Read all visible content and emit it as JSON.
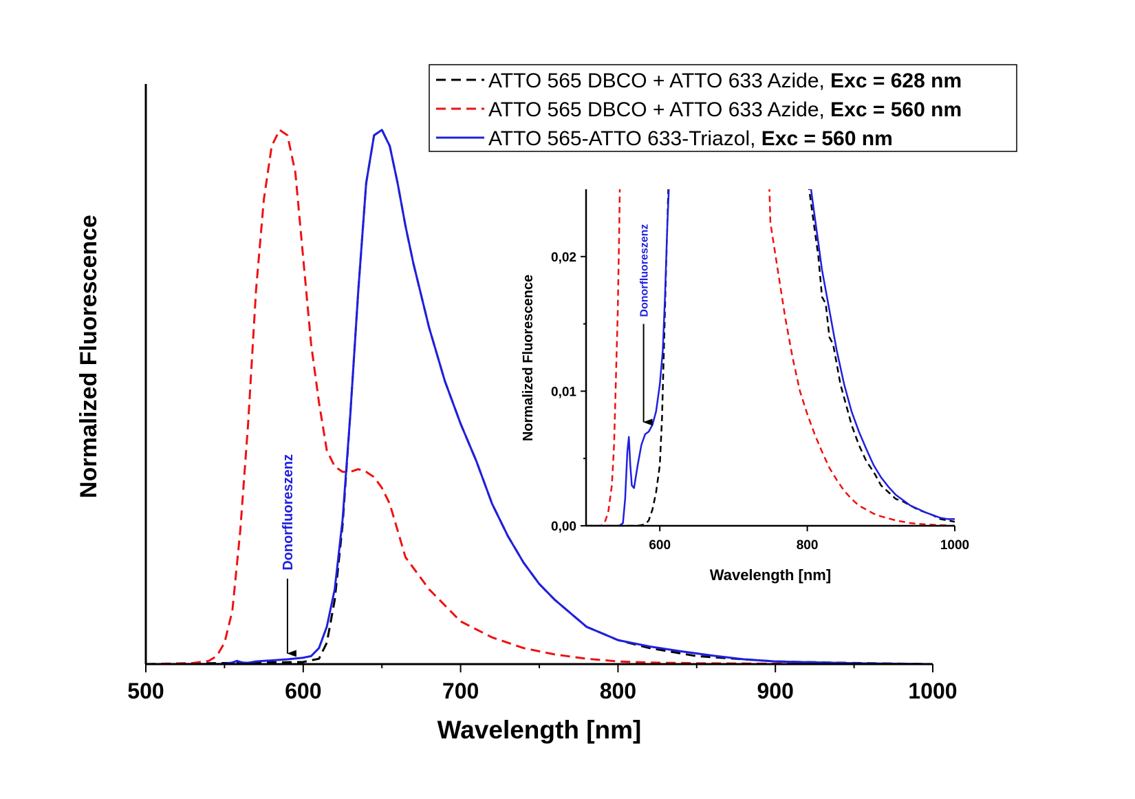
{
  "chart_data": [
    {
      "type": "line",
      "xlabel": "Wavelength [nm]",
      "ylabel": "Normalized Fluorescence",
      "xlim": [
        500,
        1000
      ],
      "ylim": [
        0,
        1.05
      ],
      "x_ticks": [
        500,
        600,
        700,
        800,
        900,
        1000
      ],
      "y_ticks_shown": false,
      "legend_position": "top-right",
      "annotation": {
        "text": "Donorfluoreszenz",
        "x": 590,
        "y_tip": 0.02,
        "y_tail": 0.16,
        "color": "#1f1fe0"
      },
      "series": [
        {
          "name": "ATTO 565 DBCO + ATTO 633 Azide, ",
          "name_bold": "Exc = 628 nm",
          "color": "#000000",
          "dash": "dashed",
          "x": [
            500,
            600,
            610,
            615,
            620,
            625,
            630,
            635,
            640,
            645,
            650,
            655,
            660,
            665,
            670,
            680,
            690,
            700,
            710,
            720,
            730,
            740,
            750,
            760,
            780,
            800,
            820,
            850,
            900,
            950,
            1000
          ],
          "y": [
            0,
            0.004,
            0.01,
            0.04,
            0.12,
            0.26,
            0.47,
            0.7,
            0.9,
            0.99,
            1.0,
            0.97,
            0.9,
            0.82,
            0.75,
            0.63,
            0.53,
            0.45,
            0.38,
            0.3,
            0.24,
            0.19,
            0.15,
            0.12,
            0.07,
            0.045,
            0.03,
            0.015,
            0.005,
            0.002,
            0.0
          ]
        },
        {
          "name": "ATTO 565 DBCO + ATTO 633 Azide, ",
          "name_bold": "Exc = 560 nm",
          "color": "#ee1111",
          "dash": "dashed",
          "x": [
            500,
            530,
            540,
            545,
            550,
            555,
            560,
            565,
            570,
            575,
            580,
            585,
            590,
            595,
            600,
            605,
            610,
            615,
            620,
            625,
            630,
            635,
            640,
            645,
            650,
            655,
            660,
            665,
            670,
            680,
            690,
            700,
            720,
            740,
            760,
            780,
            800,
            820,
            850,
            900,
            950,
            1000
          ],
          "y": [
            0,
            0.002,
            0.006,
            0.015,
            0.04,
            0.1,
            0.25,
            0.45,
            0.7,
            0.87,
            0.97,
            1.0,
            0.99,
            0.92,
            0.76,
            0.6,
            0.49,
            0.4,
            0.37,
            0.36,
            0.36,
            0.365,
            0.36,
            0.35,
            0.33,
            0.3,
            0.25,
            0.2,
            0.18,
            0.14,
            0.11,
            0.08,
            0.05,
            0.03,
            0.018,
            0.01,
            0.005,
            0.003,
            0.0015,
            0.0008,
            0.0003,
            0.0
          ]
        },
        {
          "name": "ATTO 565-ATTO 633-Triazol, ",
          "name_bold": "Exc = 560 nm",
          "color": "#1f1fe0",
          "dash": "solid",
          "x": [
            500,
            550,
            555,
            558,
            560,
            563,
            566,
            570,
            575,
            580,
            590,
            600,
            605,
            610,
            615,
            620,
            625,
            630,
            635,
            640,
            645,
            650,
            655,
            660,
            665,
            670,
            680,
            690,
            700,
            710,
            720,
            730,
            740,
            750,
            760,
            780,
            800,
            820,
            840,
            860,
            880,
            900,
            950,
            1000
          ],
          "y": [
            0,
            0.0005,
            0.003,
            0.006,
            0.004,
            0.002,
            0.003,
            0.005,
            0.006,
            0.007,
            0.009,
            0.012,
            0.015,
            0.03,
            0.07,
            0.14,
            0.27,
            0.47,
            0.7,
            0.9,
            0.99,
            1.0,
            0.97,
            0.9,
            0.82,
            0.75,
            0.63,
            0.53,
            0.45,
            0.38,
            0.3,
            0.24,
            0.19,
            0.15,
            0.12,
            0.07,
            0.045,
            0.033,
            0.024,
            0.016,
            0.009,
            0.005,
            0.0015,
            0.0
          ]
        }
      ]
    },
    {
      "type": "line",
      "inset": true,
      "xlabel": "Wavelength [nm]",
      "ylabel": "Normalized Fluorescence",
      "xlim": [
        500,
        1000
      ],
      "ylim": [
        0,
        0.025
      ],
      "x_ticks": [
        600,
        800,
        1000
      ],
      "y_ticks": [
        "0,00",
        "0,01",
        "0,02"
      ],
      "y_tick_values": [
        0.0,
        0.01,
        0.02
      ],
      "annotation": {
        "text": "Donorfluoreszenz",
        "x": 578,
        "y_tip": 0.0077,
        "y_tail": 0.015,
        "color": "#1f1fe0"
      },
      "series": [
        {
          "color": "#000000",
          "dash": "dashed",
          "x": [
            500,
            570,
            580,
            585,
            590,
            595,
            600,
            603,
            606,
            609,
            612,
            800,
            810,
            815,
            820,
            825,
            830,
            835,
            840,
            845,
            850,
            855,
            860,
            870,
            880,
            890,
            900,
            910,
            920,
            930,
            940,
            950,
            960,
            970,
            980,
            990,
            1000
          ],
          "y": [
            0,
            0,
            0.0001,
            0.0004,
            0.0012,
            0.0025,
            0.0045,
            0.008,
            0.014,
            0.02,
            0.026,
            0.026,
            0.022,
            0.02,
            0.017,
            0.0165,
            0.014,
            0.0135,
            0.012,
            0.0105,
            0.0095,
            0.0085,
            0.0075,
            0.006,
            0.0048,
            0.004,
            0.003,
            0.0025,
            0.002,
            0.0018,
            0.0015,
            0.0012,
            0.001,
            0.0008,
            0.0005,
            0.0004,
            0.0003
          ]
        },
        {
          "color": "#ee1111",
          "dash": "dashed",
          "x": [
            500,
            520,
            525,
            530,
            535,
            538,
            540,
            543,
            545,
            546,
            748,
            750,
            760,
            770,
            780,
            790,
            800,
            810,
            820,
            830,
            840,
            850,
            860,
            870,
            880,
            890,
            900,
            920,
            940,
            960,
            980,
            1000
          ],
          "y": [
            0,
            0,
            0.0002,
            0.001,
            0.003,
            0.006,
            0.01,
            0.016,
            0.022,
            0.026,
            0.026,
            0.0225,
            0.019,
            0.0155,
            0.0125,
            0.01,
            0.0083,
            0.0068,
            0.0055,
            0.0043,
            0.0034,
            0.0026,
            0.002,
            0.0015,
            0.0012,
            0.0009,
            0.0007,
            0.0004,
            0.0002,
            0.0001,
            5e-05,
            0
          ]
        },
        {
          "color": "#1f1fe0",
          "dash": "solid",
          "x": [
            500,
            545,
            550,
            553,
            556,
            558,
            560,
            562,
            565,
            570,
            575,
            580,
            585,
            590,
            595,
            600,
            604,
            607,
            610,
            613,
            800,
            805,
            810,
            815,
            820,
            825,
            830,
            835,
            840,
            850,
            860,
            870,
            880,
            890,
            900,
            910,
            920,
            940,
            960,
            980,
            990,
            1000
          ],
          "y": [
            0,
            0,
            0.0002,
            0.002,
            0.0055,
            0.0066,
            0.0045,
            0.003,
            0.0028,
            0.0045,
            0.006,
            0.0068,
            0.007,
            0.0075,
            0.0085,
            0.0105,
            0.013,
            0.017,
            0.022,
            0.026,
            0.026,
            0.025,
            0.023,
            0.021,
            0.019,
            0.0175,
            0.016,
            0.0145,
            0.013,
            0.0105,
            0.0085,
            0.007,
            0.0057,
            0.0045,
            0.0036,
            0.0029,
            0.0023,
            0.0015,
            0.001,
            0.0006,
            0.0005,
            0.0005
          ]
        }
      ]
    }
  ]
}
